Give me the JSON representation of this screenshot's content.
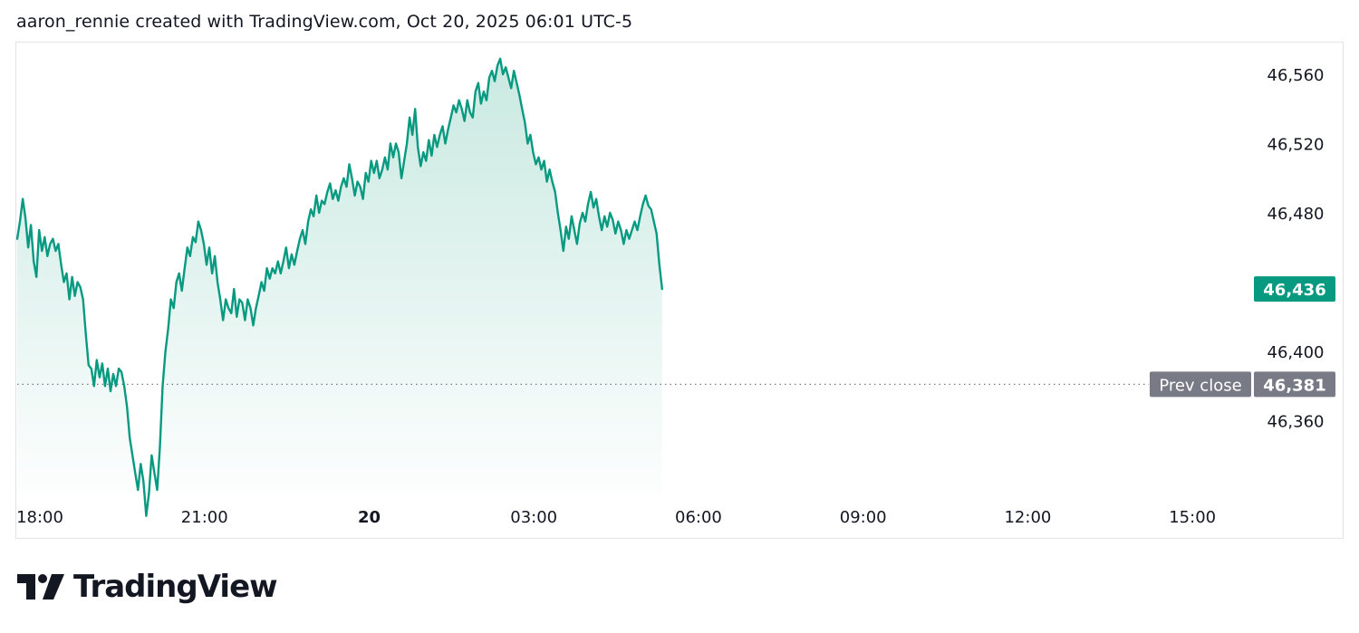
{
  "header": {
    "attribution": "aaron_rennie created with TradingView.com, Oct 20, 2025 06:01 UTC-5"
  },
  "branding": {
    "logo_text": "TradingView",
    "logo_icon": "tradingview-logo-icon"
  },
  "colors": {
    "line": "#089981",
    "area_top": "#c9e9e1",
    "area_bottom": "#ffffff",
    "last_price_badge": "#089981",
    "prev_close_badge": "#787b86",
    "dotted_line": "#787b86",
    "text": "#131722"
  },
  "chart_data": {
    "type": "area",
    "session_date": "Oct 20, 2025",
    "x_axis_ticks": [
      {
        "label": "18:00",
        "t": 0,
        "bold": false
      },
      {
        "label": "21:00",
        "t": 180,
        "bold": false
      },
      {
        "label": "20",
        "t": 360,
        "bold": true
      },
      {
        "label": "03:00",
        "t": 540,
        "bold": false
      },
      {
        "label": "06:00",
        "t": 720,
        "bold": false
      },
      {
        "label": "09:00",
        "t": 900,
        "bold": false
      },
      {
        "label": "12:00",
        "t": 1080,
        "bold": false
      },
      {
        "label": "15:00",
        "t": 1260,
        "bold": false
      }
    ],
    "x_unit": "minutes after 18:00 (Oct 19)",
    "y_axis_ticks": [
      46560,
      46520,
      46480,
      46400,
      46360
    ],
    "ylim": [
      46298,
      46569
    ],
    "x_range": [
      0,
      1450
    ],
    "last_price": {
      "value": 46436,
      "label": "46,436"
    },
    "prev_close": {
      "value": 46381,
      "label": "46,381",
      "tag": "Prev close"
    },
    "series": [
      {
        "values": [
          [
            0,
            46465
          ],
          [
            3,
            46475
          ],
          [
            6,
            46488
          ],
          [
            9,
            46477
          ],
          [
            12,
            46460
          ],
          [
            15,
            46473
          ],
          [
            18,
            46452
          ],
          [
            21,
            46443
          ],
          [
            24,
            46470
          ],
          [
            27,
            46458
          ],
          [
            30,
            46466
          ],
          [
            33,
            46455
          ],
          [
            36,
            46462
          ],
          [
            39,
            46465
          ],
          [
            42,
            46458
          ],
          [
            45,
            46462
          ],
          [
            48,
            46450
          ],
          [
            51,
            46440
          ],
          [
            54,
            46445
          ],
          [
            57,
            46430
          ],
          [
            60,
            46443
          ],
          [
            63,
            46432
          ],
          [
            66,
            46440
          ],
          [
            69,
            46437
          ],
          [
            72,
            46430
          ],
          [
            75,
            46410
          ],
          [
            78,
            46392
          ],
          [
            81,
            46390
          ],
          [
            84,
            46380
          ],
          [
            87,
            46395
          ],
          [
            90,
            46385
          ],
          [
            93,
            46393
          ],
          [
            96,
            46380
          ],
          [
            99,
            46390
          ],
          [
            102,
            46377
          ],
          [
            105,
            46387
          ],
          [
            108,
            46380
          ],
          [
            111,
            46390
          ],
          [
            114,
            46388
          ],
          [
            117,
            46380
          ],
          [
            120,
            46368
          ],
          [
            123,
            46350
          ],
          [
            126,
            46340
          ],
          [
            129,
            46330
          ],
          [
            132,
            46320
          ],
          [
            135,
            46335
          ],
          [
            138,
            46325
          ],
          [
            141,
            46305
          ],
          [
            144,
            46318
          ],
          [
            147,
            46340
          ],
          [
            150,
            46330
          ],
          [
            153,
            46320
          ],
          [
            156,
            46345
          ],
          [
            159,
            46380
          ],
          [
            162,
            46400
          ],
          [
            165,
            46413
          ],
          [
            168,
            46430
          ],
          [
            171,
            46425
          ],
          [
            174,
            46440
          ],
          [
            177,
            46445
          ],
          [
            180,
            46435
          ],
          [
            183,
            46448
          ],
          [
            186,
            46460
          ],
          [
            189,
            46455
          ],
          [
            192,
            46466
          ],
          [
            195,
            46463
          ],
          [
            198,
            46475
          ],
          [
            201,
            46470
          ],
          [
            204,
            46462
          ],
          [
            207,
            46450
          ],
          [
            210,
            46460
          ],
          [
            213,
            46445
          ],
          [
            216,
            46455
          ],
          [
            219,
            46440
          ],
          [
            222,
            46430
          ],
          [
            225,
            46418
          ],
          [
            228,
            46430
          ],
          [
            231,
            46425
          ],
          [
            234,
            46422
          ],
          [
            237,
            46436
          ],
          [
            240,
            46420
          ],
          [
            243,
            46430
          ],
          [
            246,
            46428
          ],
          [
            249,
            46418
          ],
          [
            252,
            46430
          ],
          [
            255,
            46425
          ],
          [
            258,
            46415
          ],
          [
            261,
            46425
          ],
          [
            264,
            46432
          ],
          [
            267,
            46440
          ],
          [
            270,
            46435
          ],
          [
            273,
            46448
          ],
          [
            276,
            46442
          ],
          [
            279,
            46448
          ],
          [
            282,
            46445
          ],
          [
            285,
            46452
          ],
          [
            288,
            46445
          ],
          [
            291,
            46452
          ],
          [
            294,
            46460
          ],
          [
            297,
            46448
          ],
          [
            300,
            46456
          ],
          [
            303,
            46450
          ],
          [
            306,
            46458
          ],
          [
            309,
            46465
          ],
          [
            312,
            46470
          ],
          [
            315,
            46462
          ],
          [
            318,
            46475
          ],
          [
            321,
            46482
          ],
          [
            324,
            46478
          ],
          [
            327,
            46490
          ],
          [
            330,
            46480
          ],
          [
            333,
            46487
          ],
          [
            336,
            46485
          ],
          [
            339,
            46492
          ],
          [
            342,
            46497
          ],
          [
            345,
            46488
          ],
          [
            348,
            46493
          ],
          [
            351,
            46487
          ],
          [
            354,
            46495
          ],
          [
            357,
            46500
          ],
          [
            360,
            46495
          ],
          [
            363,
            46508
          ],
          [
            366,
            46500
          ],
          [
            369,
            46490
          ],
          [
            372,
            46498
          ],
          [
            375,
            46495
          ],
          [
            378,
            46488
          ],
          [
            381,
            46503
          ],
          [
            384,
            46498
          ],
          [
            387,
            46510
          ],
          [
            390,
            46503
          ],
          [
            393,
            46510
          ],
          [
            396,
            46500
          ],
          [
            399,
            46505
          ],
          [
            402,
            46512
          ],
          [
            405,
            46505
          ],
          [
            408,
            46520
          ],
          [
            411,
            46512
          ],
          [
            414,
            46520
          ],
          [
            417,
            46515
          ],
          [
            420,
            46500
          ],
          [
            423,
            46510
          ],
          [
            426,
            46520
          ],
          [
            429,
            46535
          ],
          [
            432,
            46525
          ],
          [
            435,
            46540
          ],
          [
            438,
            46518
          ],
          [
            441,
            46507
          ],
          [
            444,
            46515
          ],
          [
            447,
            46510
          ],
          [
            450,
            46522
          ],
          [
            453,
            46513
          ],
          [
            456,
            46525
          ],
          [
            459,
            46518
          ],
          [
            462,
            46525
          ],
          [
            465,
            46530
          ],
          [
            468,
            46520
          ],
          [
            471,
            46528
          ],
          [
            474,
            46535
          ],
          [
            477,
            46542
          ],
          [
            480,
            46538
          ],
          [
            483,
            46545
          ],
          [
            486,
            46540
          ],
          [
            489,
            46533
          ],
          [
            492,
            46545
          ],
          [
            495,
            46538
          ],
          [
            498,
            46535
          ],
          [
            501,
            46550
          ],
          [
            504,
            46555
          ],
          [
            507,
            46543
          ],
          [
            510,
            46550
          ],
          [
            513,
            46545
          ],
          [
            516,
            46558
          ],
          [
            519,
            46562
          ],
          [
            522,
            46556
          ],
          [
            525,
            46565
          ],
          [
            528,
            46569
          ],
          [
            531,
            46560
          ],
          [
            534,
            46564
          ],
          [
            537,
            46558
          ],
          [
            540,
            46552
          ],
          [
            543,
            46562
          ],
          [
            546,
            46555
          ],
          [
            549,
            46548
          ],
          [
            552,
            46540
          ],
          [
            555,
            46532
          ],
          [
            558,
            46520
          ],
          [
            561,
            46525
          ],
          [
            564,
            46515
          ],
          [
            567,
            46508
          ],
          [
            570,
            46512
          ],
          [
            573,
            46505
          ],
          [
            576,
            46510
          ],
          [
            579,
            46498
          ],
          [
            582,
            46505
          ],
          [
            585,
            46498
          ],
          [
            588,
            46492
          ],
          [
            591,
            46480
          ],
          [
            594,
            46470
          ],
          [
            597,
            46458
          ],
          [
            600,
            46472
          ],
          [
            603,
            46465
          ],
          [
            606,
            46478
          ],
          [
            609,
            46470
          ],
          [
            612,
            46462
          ],
          [
            615,
            46474
          ],
          [
            618,
            46480
          ],
          [
            621,
            46475
          ],
          [
            624,
            46485
          ],
          [
            627,
            46492
          ],
          [
            630,
            46483
          ],
          [
            633,
            46488
          ],
          [
            636,
            46478
          ],
          [
            639,
            46470
          ],
          [
            642,
            46478
          ],
          [
            645,
            46472
          ],
          [
            648,
            46480
          ],
          [
            651,
            46476
          ],
          [
            654,
            46468
          ],
          [
            657,
            46475
          ],
          [
            660,
            46470
          ],
          [
            663,
            46462
          ],
          [
            666,
            46470
          ],
          [
            669,
            46465
          ],
          [
            672,
            46470
          ],
          [
            675,
            46475
          ],
          [
            678,
            46470
          ],
          [
            681,
            46478
          ],
          [
            684,
            46485
          ],
          [
            687,
            46490
          ],
          [
            690,
            46484
          ],
          [
            693,
            46482
          ],
          [
            696,
            46475
          ],
          [
            699,
            46468
          ],
          [
            702,
            46450
          ],
          [
            705,
            46436
          ]
        ]
      }
    ],
    "grid": false,
    "legend": "none"
  }
}
